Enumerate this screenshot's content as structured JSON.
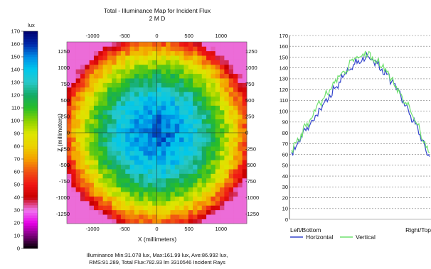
{
  "chart_data": [
    {
      "type": "heatmap",
      "title": "Total - Illuminance Map for Incident Flux",
      "subtitle": "2 M D",
      "xlabel": "X (millimeters)",
      "ylabel": "Z (millimeters)",
      "xlim": [
        -1400,
        1400
      ],
      "ylim": [
        -1400,
        1400
      ],
      "top_ticks": [
        "-1000",
        "-500",
        "0",
        "500",
        "1000"
      ],
      "bottom_ticks": [
        "-1000",
        "-500",
        "0",
        "500",
        "1000"
      ],
      "left_ticks": [
        "1250",
        "1000",
        "750",
        "500",
        "250",
        "0",
        "-250",
        "-500",
        "-750",
        "-1000",
        "-1250"
      ],
      "right_ticks": [
        "1250",
        "1000",
        "750",
        "500",
        "250",
        "0",
        "-250",
        "-500",
        "-750",
        "-1000",
        "-1250"
      ],
      "colorbar": {
        "unit": "lux",
        "range": [
          0,
          170
        ],
        "ticks": [
          "170",
          "160",
          "150",
          "140",
          "130",
          "120",
          "110",
          "100",
          "90",
          "80",
          "70",
          "60",
          "50",
          "40",
          "30",
          "20",
          "10",
          "0"
        ]
      },
      "field": {
        "peak": 152,
        "edge": 58,
        "corner": 31,
        "center": [
          0,
          0
        ]
      },
      "stats_line1": "Illuminance Min:31.078 lux, Max:161.99 lux, Ave:86.992 lux,",
      "stats_line2": "RMS:91.289, Total Flux:782.93 lm 3310546 Incident Rays"
    },
    {
      "type": "line",
      "xlim": [
        0,
        100
      ],
      "ylim": [
        0,
        170
      ],
      "y_ticks": [
        "170",
        "160",
        "150",
        "140",
        "130",
        "120",
        "110",
        "100",
        "90",
        "80",
        "70",
        "60",
        "50",
        "40",
        "30",
        "20",
        "10",
        "0"
      ],
      "x_left_label": "Left/Bottom",
      "x_right_label": "Right/Top",
      "grid": true,
      "legend": "bottom",
      "series": [
        {
          "name": "Horizontal",
          "color": "#3344cc",
          "values": [
            62,
            68,
            76,
            82,
            89,
            96,
            102,
            109,
            115,
            121,
            127,
            133,
            138,
            143,
            147,
            150,
            151,
            148,
            144,
            139,
            134,
            127,
            120,
            113,
            105,
            96,
            88,
            78,
            68,
            58
          ]
        },
        {
          "name": "Vertical",
          "color": "#6ee06e",
          "values": [
            64,
            71,
            79,
            86,
            93,
            100,
            107,
            114,
            120,
            126,
            132,
            137,
            142,
            146,
            149,
            153,
            152,
            150,
            146,
            141,
            136,
            130,
            123,
            116,
            108,
            100,
            91,
            82,
            72,
            62
          ]
        }
      ]
    }
  ]
}
